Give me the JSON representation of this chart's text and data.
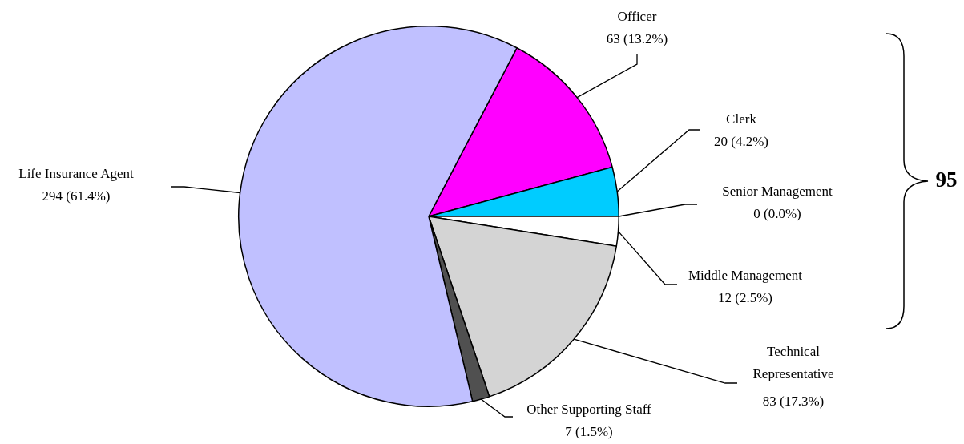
{
  "chart_data": {
    "type": "pie",
    "categories": [
      "Officer",
      "Clerk",
      "Senior Management",
      "Middle Management",
      "Technical Representative",
      "Other Supporting Staff",
      "Life Insurance Agent"
    ],
    "values": [
      63,
      20,
      0,
      12,
      83,
      7,
      294
    ],
    "value_labels": [
      "63 (13.2%)",
      "20 (4.2%)",
      "0 (0.0%)",
      "12 (2.5%)",
      "83 (17.3%)",
      "7 (1.5%)",
      "294 (61.4%)"
    ],
    "colors": [
      "#ff00ff",
      "#00ccff",
      "#ffffff",
      "#ffffff",
      "#d4d4d4",
      "#505050",
      "#c0c0ff"
    ],
    "annotations": [
      "95"
    ],
    "legend": false
  }
}
